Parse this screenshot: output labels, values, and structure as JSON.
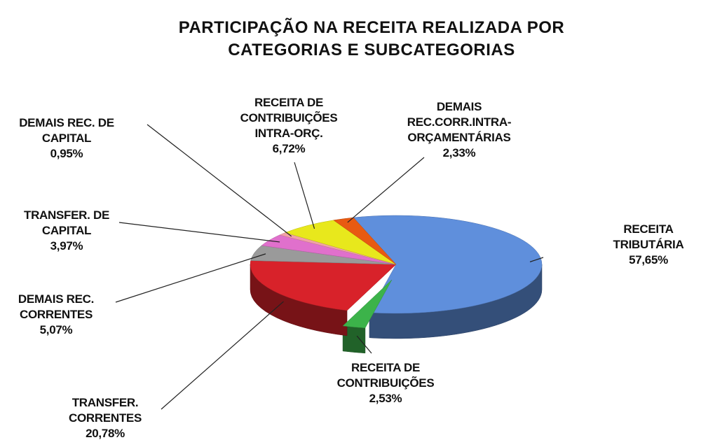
{
  "chart_data": {
    "type": "pie",
    "title": "PARTICIPAÇÃO NA RECEITA REALIZADA POR CATEGORIAS E SUBCATEGORIAS",
    "categories": [
      "RECEITA TRIBUTÁRIA",
      "RECEITA DE CONTRIBUIÇÕES",
      "TRANSFER. CORRENTES",
      "DEMAIS REC. CORRENTES",
      "TRANSFER. DE CAPITAL",
      "DEMAIS REC. DE CAPITAL",
      "RECEITA DE CONTRIBUIÇÕES INTRA-ORÇ.",
      "DEMAIS REC.CORR.INTRA-ORÇAMENTÁRIAS"
    ],
    "values": [
      57.65,
      2.53,
      20.78,
      5.07,
      3.97,
      0.95,
      6.72,
      2.33
    ],
    "value_labels": [
      "57,65%",
      "2,53%",
      "20,78%",
      "5,07%",
      "3,97%",
      "0,95%",
      "6,72%",
      "2,33%"
    ],
    "colors": [
      "#5f8fdc",
      "#3cb34a",
      "#d8222a",
      "#9a9a9a",
      "#e070cc",
      "#f2a0a8",
      "#e8e81c",
      "#e85a12"
    ]
  }
}
